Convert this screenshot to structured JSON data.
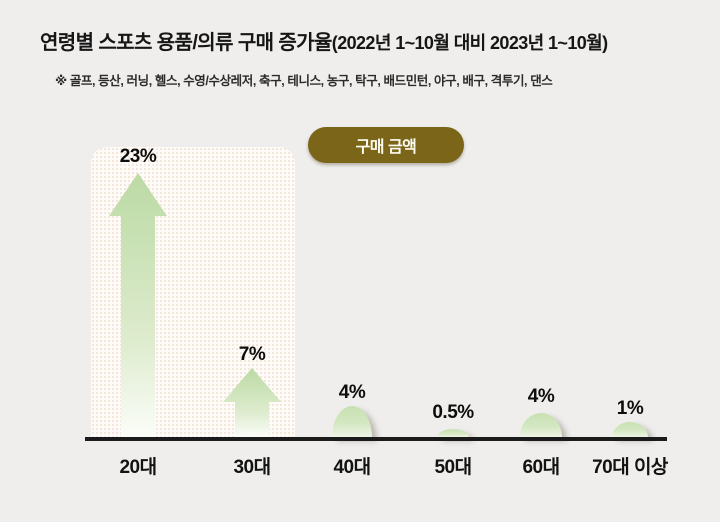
{
  "title": {
    "main": "연령별 스포츠 용품/의류 구매 증가율",
    "paren": "(2022년 1~10월 대비 2023년 1~10월)"
  },
  "subtitle": "※ 골프, 등산, 러닝, 헬스, 수영/수상레저, 축구, 테니스, 농구, 탁구, 배드민턴, 야구, 배구, 격투기, 댄스",
  "legend_badge": {
    "label": "구매 금액"
  },
  "colors": {
    "background": "#efeeec",
    "badge": "#7a6518",
    "badge_text": "#fdfcf2",
    "arrow_green": "#c6e0b4",
    "axis": "#1b1b1b",
    "highlight_dots": "#f0e3d5"
  },
  "chart_data": {
    "type": "bar",
    "title": "연령별 스포츠 용품/의류 구매 증가율(2022년 1~10월 대비 2023년 1~10월)",
    "subtitle_note": "※ 골프, 등산, 러닝, 헬스, 수영/수상레저, 축구, 테니스, 농구, 탁구, 배드민턴, 야구, 배구, 격투기, 댄스",
    "series_label": "구매 금액",
    "categories": [
      "20대",
      "30대",
      "40대",
      "50대",
      "60대",
      "70대 이상"
    ],
    "values": [
      23,
      7,
      4,
      0.5,
      4,
      1
    ],
    "value_labels": [
      "23%",
      "7%",
      "4%",
      "0.5%",
      "4%",
      "1%"
    ],
    "unit": "%",
    "highlighted_categories": [
      "20대",
      "30대"
    ],
    "legend_position": "top",
    "grid": false,
    "bar_style": "upward-arrows-and-bumps"
  }
}
